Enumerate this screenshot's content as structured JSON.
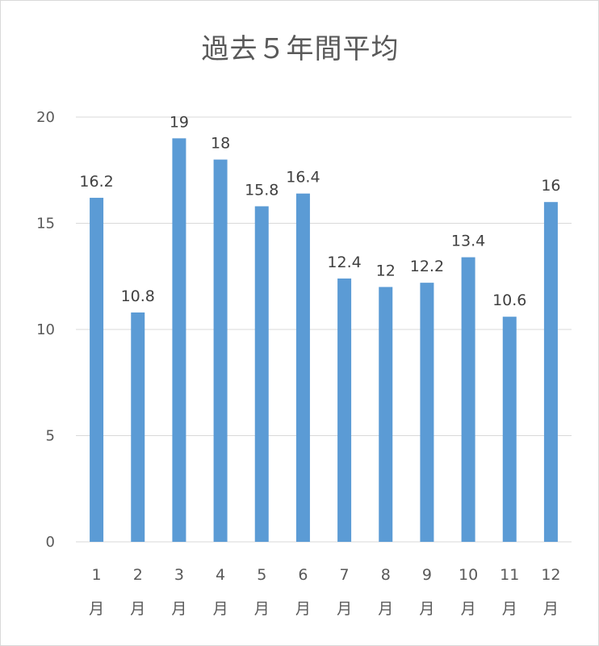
{
  "chart_data": {
    "type": "bar",
    "title": "過去５年間平均",
    "categories": [
      {
        "num": "1",
        "unit": "月"
      },
      {
        "num": "2",
        "unit": "月"
      },
      {
        "num": "3",
        "unit": "月"
      },
      {
        "num": "4",
        "unit": "月"
      },
      {
        "num": "5",
        "unit": "月"
      },
      {
        "num": "6",
        "unit": "月"
      },
      {
        "num": "7",
        "unit": "月"
      },
      {
        "num": "8",
        "unit": "月"
      },
      {
        "num": "9",
        "unit": "月"
      },
      {
        "num": "10",
        "unit": "月"
      },
      {
        "num": "11",
        "unit": "月"
      },
      {
        "num": "12",
        "unit": "月"
      }
    ],
    "values": [
      16.2,
      10.8,
      19,
      18,
      15.8,
      16.4,
      12.4,
      12,
      12.2,
      13.4,
      10.6,
      16
    ],
    "data_labels": [
      "16.2",
      "10.8",
      "19",
      "18",
      "15.8",
      "16.4",
      "12.4",
      "12",
      "12.2",
      "13.4",
      "10.6",
      "16"
    ],
    "ylim": [
      0,
      20
    ],
    "yticks": [
      "0",
      "5",
      "10",
      "15",
      "20"
    ],
    "grid": true,
    "legend": "none",
    "bar_color": "#5b9bd5",
    "grid_color": "#d9d9d9"
  }
}
